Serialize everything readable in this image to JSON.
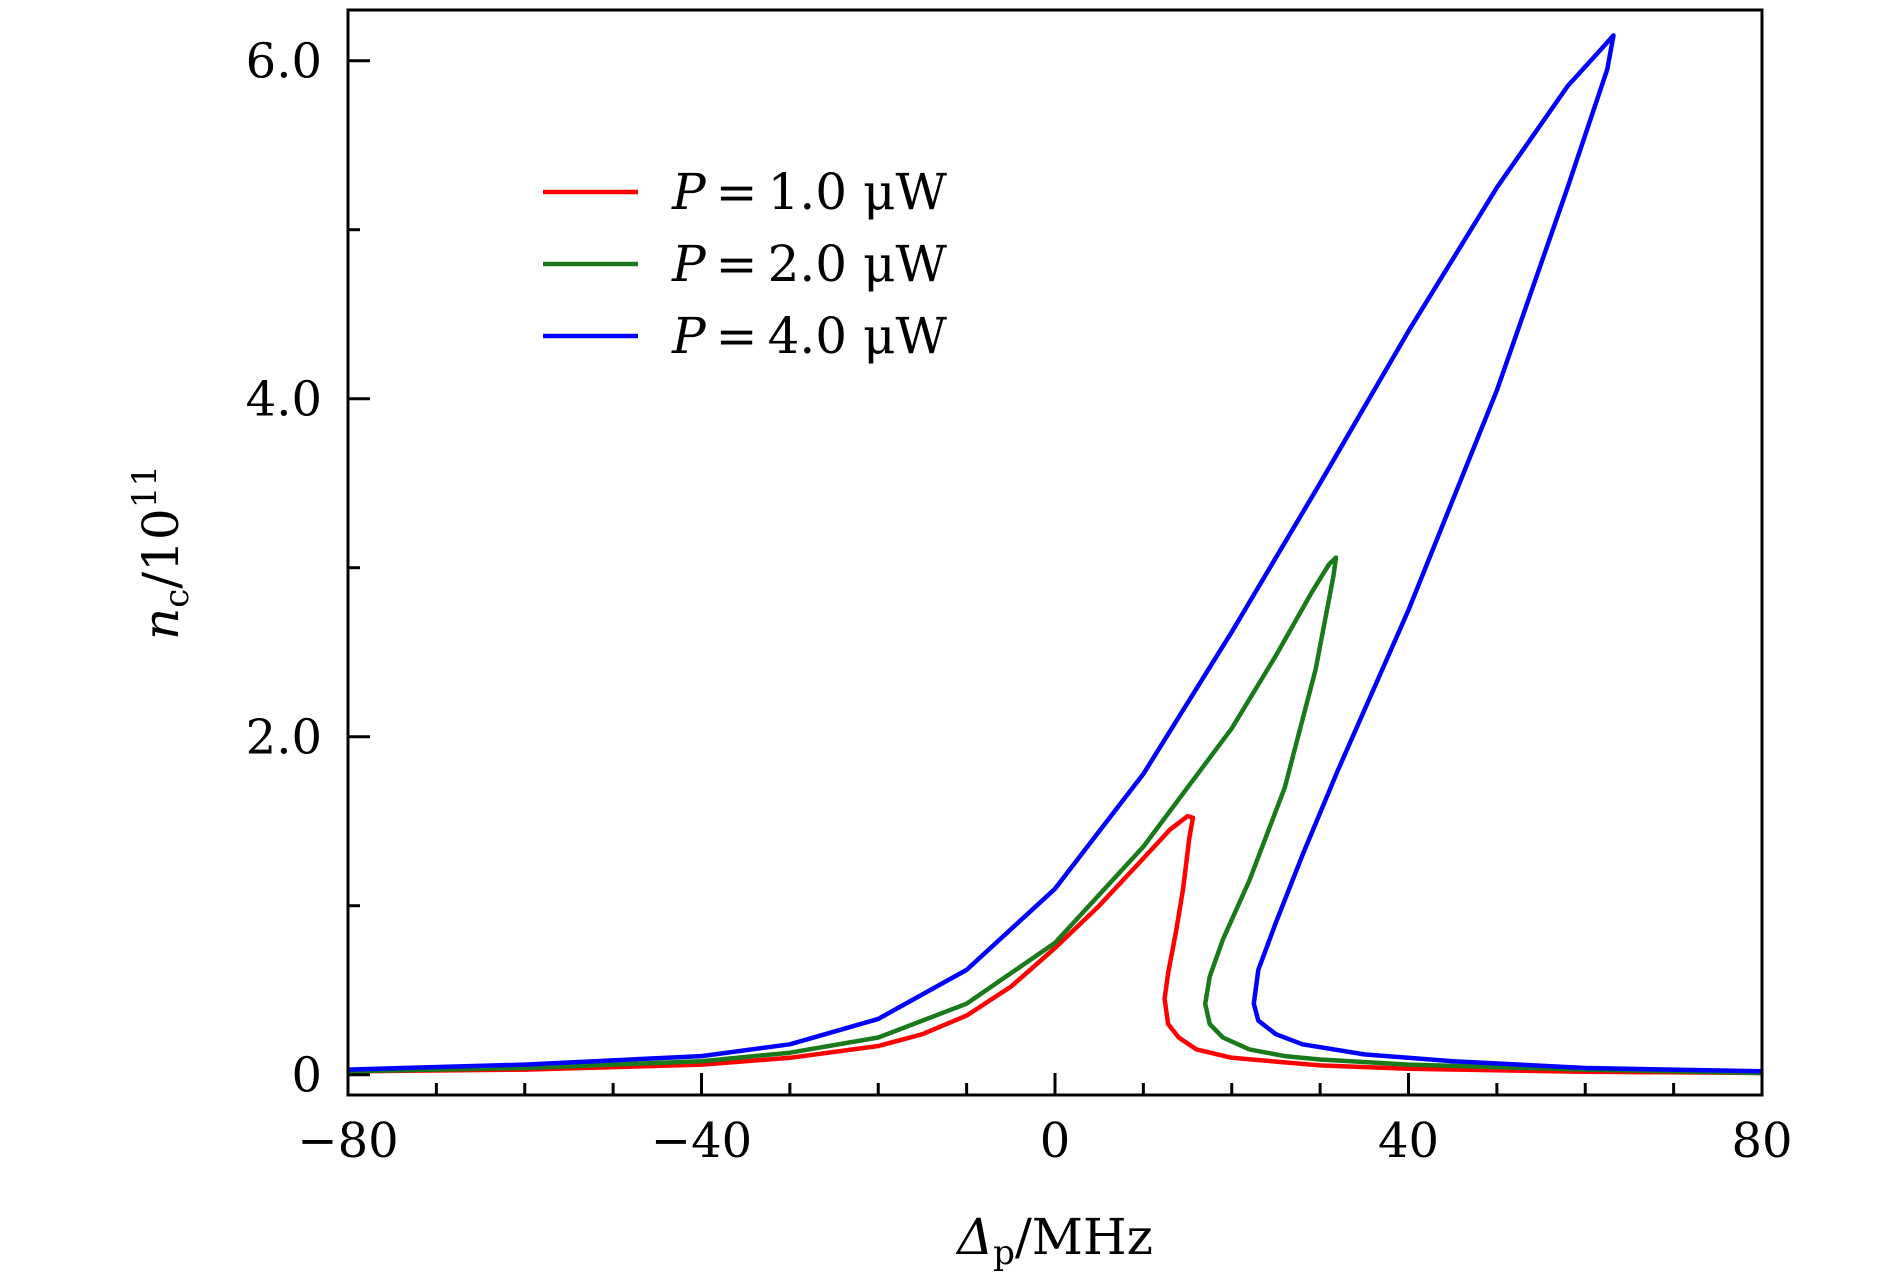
{
  "chart_data": {
    "type": "line",
    "title": "",
    "xlabel": {
      "symbol": "Δ",
      "subscript": "p",
      "unit": "/MHz"
    },
    "ylabel": {
      "symbol": "n",
      "subscript": "c",
      "suffix": "/10",
      "exponent": "11"
    },
    "xlim": [
      -80,
      80
    ],
    "ylim": [
      -0.12,
      6.3
    ],
    "x_ticks": [
      -80,
      -40,
      0,
      40,
      80
    ],
    "x_tick_labels": [
      "−80",
      "−40",
      "0",
      "40",
      "80"
    ],
    "x_minor_step": 10,
    "y_ticks": [
      0,
      2,
      4,
      6
    ],
    "y_tick_labels": [
      "0",
      "2.0",
      "4.0",
      "6.0"
    ],
    "y_minor_step": 1,
    "grid": false,
    "legend_position": "upper-left",
    "series": [
      {
        "name": "P = 1.0 μW",
        "legend": {
          "symbol": "P",
          "eq": "=",
          "value": "1.0 μW"
        },
        "color": "#ff0000",
        "x": [
          -80,
          -60,
          -40,
          -30,
          -20,
          -15,
          -10,
          -5,
          0,
          5,
          10,
          13,
          15,
          15.6,
          15.2,
          14.5,
          13.7,
          12.8,
          12.4,
          12.8,
          14,
          16,
          20,
          30,
          40,
          60,
          80
        ],
        "y": [
          0.02,
          0.03,
          0.06,
          0.1,
          0.17,
          0.24,
          0.35,
          0.52,
          0.75,
          1.0,
          1.28,
          1.45,
          1.53,
          1.52,
          1.4,
          1.1,
          0.85,
          0.6,
          0.45,
          0.3,
          0.22,
          0.15,
          0.1,
          0.055,
          0.035,
          0.018,
          0.01
        ]
      },
      {
        "name": "P = 2.0 μW",
        "legend": {
          "symbol": "P",
          "eq": "=",
          "value": "2.0 μW"
        },
        "color": "#1a7a1a",
        "x": [
          -80,
          -60,
          -40,
          -30,
          -20,
          -10,
          0,
          10,
          20,
          25,
          29,
          31,
          31.8,
          31.5,
          29.5,
          26,
          22,
          19,
          17.5,
          17,
          17.5,
          19,
          22,
          26,
          30,
          40,
          60,
          80
        ],
        "y": [
          0.02,
          0.04,
          0.08,
          0.13,
          0.22,
          0.42,
          0.78,
          1.35,
          2.05,
          2.48,
          2.85,
          3.02,
          3.06,
          2.95,
          2.4,
          1.7,
          1.15,
          0.8,
          0.58,
          0.42,
          0.3,
          0.22,
          0.15,
          0.11,
          0.09,
          0.06,
          0.03,
          0.01
        ]
      },
      {
        "name": "P = 4.0 μW",
        "legend": {
          "symbol": "P",
          "eq": "=",
          "value": "4.0 μW"
        },
        "color": "#0000ff",
        "x": [
          -80,
          -60,
          -40,
          -30,
          -20,
          -10,
          0,
          10,
          20,
          30,
          40,
          50,
          58,
          62,
          63.2,
          62.5,
          58,
          50,
          40,
          32,
          28,
          25,
          23,
          22.5,
          23,
          25,
          28,
          35,
          45,
          60,
          80
        ],
        "y": [
          0.03,
          0.06,
          0.11,
          0.18,
          0.33,
          0.62,
          1.1,
          1.78,
          2.62,
          3.5,
          4.4,
          5.25,
          5.85,
          6.08,
          6.15,
          5.95,
          5.25,
          4.05,
          2.75,
          1.8,
          1.3,
          0.9,
          0.62,
          0.42,
          0.32,
          0.24,
          0.18,
          0.12,
          0.08,
          0.04,
          0.02
        ]
      }
    ]
  }
}
